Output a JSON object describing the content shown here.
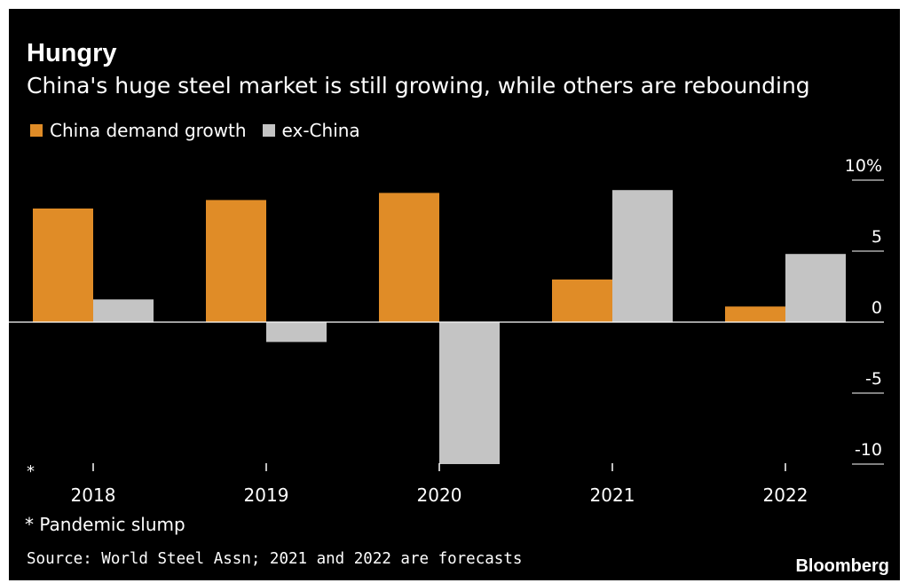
{
  "chart_data": {
    "type": "bar",
    "title": "Hungry",
    "subtitle": "China's huge steel market is still growing, while others are rebounding",
    "categories": [
      "2018",
      "2019",
      "2020",
      "2021",
      "2022"
    ],
    "series": [
      {
        "name": "China demand growth",
        "color": "#e08c27",
        "values": [
          8.0,
          8.6,
          9.1,
          3.0,
          1.1
        ]
      },
      {
        "name": "ex-China",
        "color": "#c4c4c4",
        "values": [
          1.6,
          -1.4,
          -10.0,
          9.3,
          4.8
        ]
      }
    ],
    "ylim": [
      -10,
      10
    ],
    "yticks": [
      10,
      5,
      0,
      -5,
      -10
    ],
    "ytick_labels": [
      "10%",
      "5",
      "0",
      "-5",
      "-10"
    ],
    "xlabel": "",
    "ylabel": "",
    "legend_position": "top-left",
    "grid": false,
    "annotation_marker": "*",
    "annotation": "* Pandemic slump",
    "source": "Source: World Steel Assn; 2021 and 2022 are forecasts",
    "brand": "Bloomberg"
  }
}
